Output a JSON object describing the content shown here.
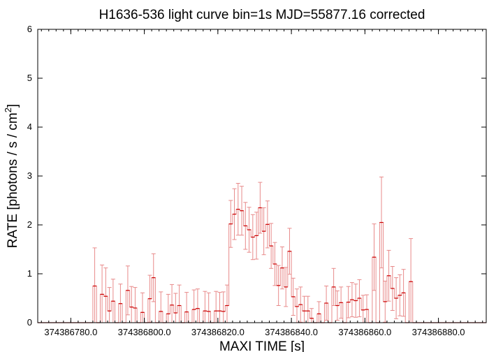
{
  "chart_data": {
    "type": "line",
    "style": "histogram-step-with-error-bars",
    "title": "H1636-536 light curve bin=1s MJD=55877.16 corrected",
    "xlabel": "MAXI TIME [s]",
    "ylabel": "RATE [photons / s / cm2]",
    "ylabel_parts": {
      "main": "RATE [photons / s / cm",
      "sup": "2",
      "tail": "]"
    },
    "xlim": [
      374386771.0,
      374386893.0
    ],
    "ylim": [
      0,
      6
    ],
    "xticks": [
      374386780,
      374386800,
      374386820,
      374386840,
      374386860,
      374386880
    ],
    "xtick_labels": [
      "374386780.0",
      "374386800.0",
      "374386820.0",
      "374386840.0",
      "374386860.0",
      "374386880.0"
    ],
    "yticks": [
      0,
      1,
      2,
      3,
      4,
      5,
      6
    ],
    "ytick_labels": [
      "0",
      "1",
      "2",
      "3",
      "4",
      "5",
      "6"
    ],
    "grid": false,
    "colors": {
      "series": "#cc0000",
      "error": "#e88a8a",
      "axes": "#000000"
    },
    "x0": 374386771.5,
    "bin_width": 1,
    "series": [
      {
        "y": [
          0,
          0,
          0,
          0,
          0,
          0,
          0,
          0,
          0,
          0,
          0,
          0,
          0,
          0,
          0,
          0.75,
          0,
          0.58,
          0.54,
          0.24,
          0.44,
          0,
          0.39,
          0,
          0.66,
          0.32,
          0.3,
          0,
          0.21,
          0,
          0.49,
          0.92,
          0,
          0.23,
          0,
          0.18,
          0.36,
          0.2,
          0.35,
          0,
          0.22,
          0,
          0.27,
          0.29,
          0,
          0.24,
          0.23,
          0,
          0.24,
          0.24,
          0.23,
          0.35,
          2.02,
          2.22,
          2.32,
          2.29,
          1.98,
          1.9,
          1.75,
          1.78,
          2.35,
          1.87,
          2.01,
          1.57,
          1.2,
          0.76,
          1.12,
          0.73,
          1.46,
          0.53,
          0.33,
          0.37,
          0.24,
          0.24,
          0.09,
          0,
          0.18,
          0,
          0.4,
          0,
          0.73,
          0.35,
          0.41,
          0,
          0.42,
          0.47,
          0.45,
          0.5,
          0.26,
          0.27,
          0,
          1.34,
          0,
          2.05,
          0.43,
          0.96,
          0.7,
          0.5,
          0.56,
          0.61,
          0,
          0.84,
          0,
          0,
          0,
          0,
          0,
          0,
          0,
          0,
          0,
          0,
          0,
          0,
          0,
          0,
          0,
          0,
          0,
          0,
          0,
          0
        ],
        "err": [
          0,
          0,
          0,
          0,
          0,
          0,
          0,
          0,
          0,
          0,
          0,
          0,
          0,
          0,
          0,
          0.78,
          0,
          0.6,
          0.58,
          0.48,
          0.45,
          0,
          0.4,
          0,
          0.5,
          0.42,
          0.42,
          0,
          0.4,
          0,
          0.48,
          0.49,
          0,
          0.4,
          0,
          0.4,
          0.42,
          0.4,
          0.42,
          0,
          0.4,
          0,
          0.4,
          0.4,
          0,
          0.4,
          0.38,
          0,
          0.4,
          0.38,
          0.4,
          0.42,
          0.48,
          0.52,
          0.53,
          0.5,
          0.48,
          0.46,
          0.46,
          0.48,
          0.52,
          0.48,
          0.48,
          0.46,
          0.44,
          0.41,
          0.43,
          0.4,
          0.47,
          0.38,
          0.36,
          0.36,
          0.3,
          0.3,
          0.2,
          0,
          0.25,
          0,
          0.35,
          0,
          0.38,
          0.3,
          0.32,
          0,
          0.32,
          0.35,
          0.34,
          0.38,
          0.3,
          0.3,
          0,
          0.68,
          0,
          0.93,
          0.42,
          0.52,
          0.45,
          0.42,
          0.42,
          0.48,
          0,
          0.88,
          0,
          0,
          0,
          0,
          0,
          0,
          0,
          0,
          0,
          0,
          0,
          0,
          0,
          0,
          0,
          0,
          0,
          0,
          0,
          0
        ]
      }
    ]
  }
}
